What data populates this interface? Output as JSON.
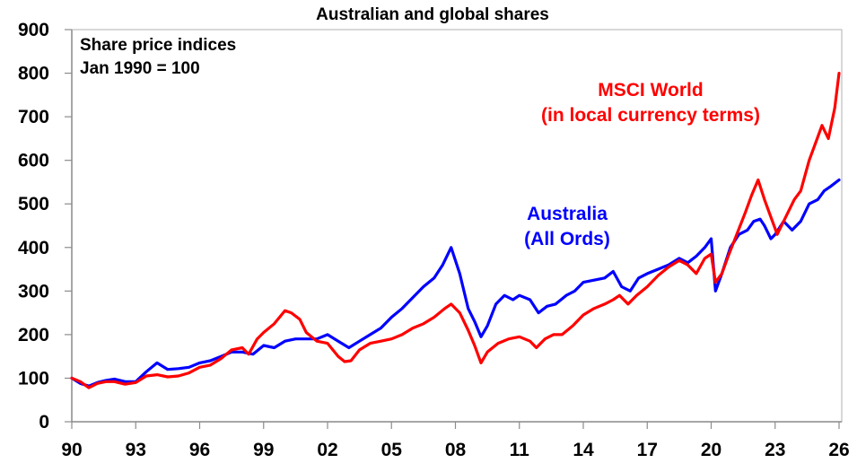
{
  "chart_data": {
    "type": "line",
    "title": "Australian and global shares",
    "annotation": [
      "Share price indices",
      "Jan 1990 = 100"
    ],
    "xlabel": "",
    "ylabel": "",
    "ylim": [
      0,
      900
    ],
    "yticks": [
      0,
      100,
      200,
      300,
      400,
      500,
      600,
      700,
      800,
      900
    ],
    "xlim": [
      1990,
      2026
    ],
    "xtick_labels": [
      "90",
      "93",
      "96",
      "99",
      "02",
      "05",
      "08",
      "11",
      "14",
      "17",
      "20",
      "23",
      "26"
    ],
    "xticks": [
      1990,
      1993,
      1996,
      1999,
      2002,
      2005,
      2008,
      2011,
      2014,
      2017,
      2020,
      2023,
      2026
    ],
    "grid": false,
    "legend_position": "inline labels",
    "series": [
      {
        "name": "MSCI World (in local currency terms)",
        "label_lines": [
          "MSCI World",
          "(in local currency terms)"
        ],
        "color": "#ff0000",
        "x": [
          1990.0,
          1990.4,
          1990.8,
          1991.2,
          1991.6,
          1992.0,
          1992.5,
          1993.0,
          1993.5,
          1994.0,
          1994.5,
          1995.0,
          1995.5,
          1996.0,
          1996.5,
          1997.0,
          1997.5,
          1998.0,
          1998.3,
          1998.7,
          1999.0,
          1999.5,
          2000.0,
          2000.3,
          2000.7,
          2001.0,
          2001.5,
          2002.0,
          2002.5,
          2002.8,
          2003.1,
          2003.5,
          2004.0,
          2004.5,
          2005.0,
          2005.5,
          2006.0,
          2006.5,
          2007.0,
          2007.5,
          2007.8,
          2008.2,
          2008.6,
          2008.9,
          2009.2,
          2009.5,
          2010.0,
          2010.5,
          2011.0,
          2011.5,
          2011.8,
          2012.2,
          2012.6,
          2013.0,
          2013.5,
          2014.0,
          2014.5,
          2015.0,
          2015.4,
          2015.7,
          2016.1,
          2016.5,
          2017.0,
          2017.5,
          2018.0,
          2018.5,
          2018.9,
          2019.3,
          2019.7,
          2020.0,
          2020.2,
          2020.5,
          2020.8,
          2021.2,
          2021.6,
          2021.9,
          2022.2,
          2022.5,
          2022.8,
          2023.1,
          2023.5,
          2023.9,
          2024.2,
          2024.6,
          2024.9,
          2025.2,
          2025.5,
          2025.8,
          2026.0
        ],
        "values": [
          100,
          92,
          78,
          88,
          92,
          92,
          86,
          90,
          105,
          108,
          103,
          105,
          112,
          125,
          130,
          145,
          165,
          170,
          155,
          190,
          205,
          225,
          255,
          250,
          235,
          205,
          185,
          180,
          150,
          138,
          140,
          165,
          180,
          185,
          190,
          200,
          215,
          225,
          240,
          260,
          270,
          250,
          210,
          175,
          135,
          160,
          180,
          190,
          195,
          185,
          170,
          190,
          200,
          200,
          220,
          245,
          260,
          270,
          280,
          290,
          270,
          290,
          310,
          335,
          355,
          370,
          360,
          340,
          375,
          385,
          320,
          340,
          380,
          430,
          480,
          520,
          555,
          510,
          470,
          430,
          470,
          510,
          530,
          600,
          640,
          680,
          650,
          720,
          800
        ],
        "last_value": 795
      },
      {
        "name": "Australia (All Ords)",
        "label_lines": [
          "Australia",
          "(All Ords)"
        ],
        "color": "#0000ff",
        "x": [
          1990.0,
          1990.4,
          1990.8,
          1991.2,
          1991.6,
          1992.0,
          1992.5,
          1993.0,
          1993.5,
          1994.0,
          1994.5,
          1995.0,
          1995.5,
          1996.0,
          1996.5,
          1997.0,
          1997.5,
          1998.0,
          1998.5,
          1999.0,
          1999.5,
          2000.0,
          2000.5,
          2001.0,
          2001.5,
          2002.0,
          2002.5,
          2003.0,
          2003.5,
          2004.0,
          2004.5,
          2005.0,
          2005.5,
          2006.0,
          2006.5,
          2007.0,
          2007.4,
          2007.8,
          2008.2,
          2008.6,
          2008.9,
          2009.2,
          2009.5,
          2009.9,
          2010.3,
          2010.7,
          2011.0,
          2011.5,
          2011.9,
          2012.3,
          2012.7,
          2013.2,
          2013.6,
          2014.0,
          2014.5,
          2015.0,
          2015.4,
          2015.8,
          2016.2,
          2016.6,
          2017.0,
          2017.5,
          2018.0,
          2018.5,
          2018.9,
          2019.3,
          2019.7,
          2020.0,
          2020.2,
          2020.5,
          2020.9,
          2021.3,
          2021.7,
          2022.0,
          2022.3,
          2022.5,
          2022.8,
          2023.0,
          2023.4,
          2023.8,
          2024.2,
          2024.6,
          2025.0,
          2025.3,
          2025.6,
          2026.0
        ],
        "values": [
          100,
          88,
          82,
          90,
          95,
          98,
          92,
          92,
          115,
          135,
          120,
          122,
          125,
          135,
          140,
          150,
          160,
          160,
          155,
          175,
          170,
          185,
          190,
          190,
          190,
          200,
          185,
          170,
          185,
          200,
          215,
          240,
          260,
          285,
          310,
          330,
          360,
          400,
          340,
          260,
          230,
          195,
          220,
          270,
          290,
          280,
          290,
          280,
          250,
          265,
          270,
          290,
          300,
          320,
          325,
          330,
          345,
          310,
          300,
          330,
          340,
          350,
          360,
          375,
          365,
          380,
          400,
          420,
          300,
          340,
          400,
          430,
          440,
          460,
          465,
          450,
          420,
          430,
          460,
          440,
          460,
          500,
          510,
          530,
          540,
          555
        ],
        "last_value": 555
      }
    ]
  }
}
